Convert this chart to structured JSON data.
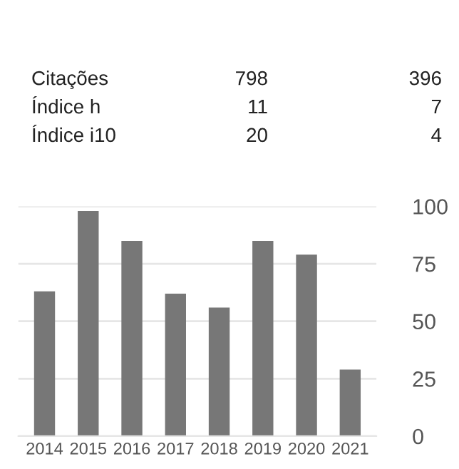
{
  "chart_data": [
    {
      "type": "other",
      "annotations": [
        "Citações",
        "798",
        "396",
        "Índice h",
        "11",
        "7",
        "Índice i10",
        "20",
        "4"
      ]
    },
    {
      "type": "bar",
      "categories": [
        "2014",
        "2015",
        "2016",
        "2017",
        "2018",
        "2019",
        "2020",
        "2021"
      ],
      "values": [
        63,
        98,
        85,
        62,
        56,
        85,
        79,
        29
      ],
      "color": "#777777",
      "ylim": [
        0,
        100
      ],
      "yticks": [
        0,
        25,
        50,
        75,
        100
      ],
      "grid": "y"
    }
  ]
}
